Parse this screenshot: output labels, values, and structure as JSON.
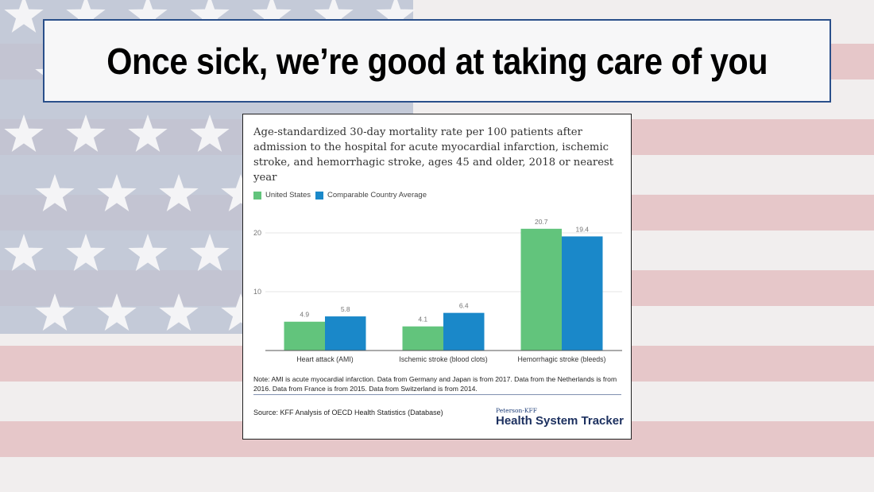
{
  "slide": {
    "title": "Once sick, we’re good at taking care of you"
  },
  "chart_data": {
    "type": "bar",
    "title": "Age-standardized 30-day mortality rate per 100 patients after admission to the hospital for acute myocardial infarction, ischemic stroke, and hemorrhagic stroke, ages 45 and older, 2018 or nearest year",
    "categories": [
      "Heart attack (AMI)",
      "Ischemic stroke (blood clots)",
      "Hemorrhagic stroke (bleeds)"
    ],
    "series": [
      {
        "name": "United States",
        "color": "#62c47c",
        "values": [
          4.9,
          4.1,
          20.7
        ],
        "labels": [
          "4.9",
          "4.1",
          "20.7"
        ]
      },
      {
        "name": "Comparable Country Average",
        "color": "#1a88c9",
        "values": [
          5.8,
          6.4,
          19.4
        ],
        "labels": [
          "5.8",
          "6.4",
          "19.4"
        ]
      }
    ],
    "yticks": [
      10,
      20
    ],
    "ytick_labels": [
      "10",
      "20"
    ],
    "ylim": [
      0,
      22
    ],
    "grid": true,
    "legend": "top-left",
    "xlabel": "",
    "ylabel": "",
    "note": "Note: AMI is acute myocardial infarction. Data from Germany and Japan is from 2017. Data from the Netherlands is from 2016. Data from France is from 2015. Data from Switzerland is from 2014.",
    "source": "Source: KFF Analysis of OECD Health Statistics (Database)",
    "brand_small": "Peterson-KFF",
    "brand": "Health System Tracker"
  }
}
